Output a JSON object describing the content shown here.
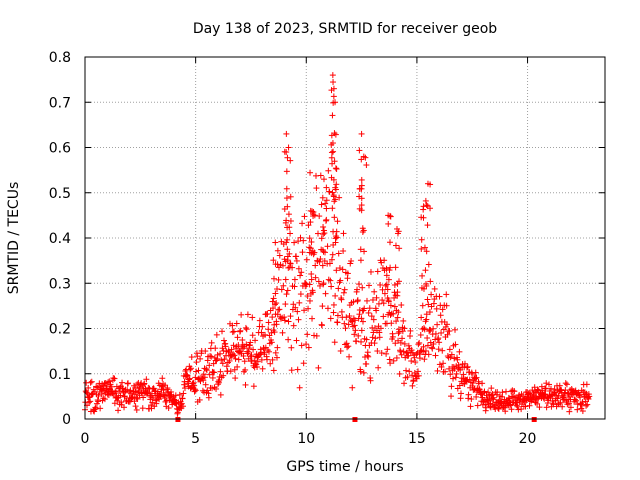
{
  "chart_data": {
    "type": "scatter",
    "title": "Day 138 of 2023, SRMTID for receiver geob",
    "xlabel": "GPS time / hours",
    "ylabel": "SRMTID / TECUs",
    "xlim": [
      0,
      23.5
    ],
    "ylim": [
      0,
      0.8
    ],
    "x_ticks": [
      0,
      5,
      10,
      15,
      20
    ],
    "x_tick_labels": [
      "0",
      "5",
      "10",
      "15",
      "20"
    ],
    "y_ticks": [
      0,
      0.1,
      0.2,
      0.3,
      0.4,
      0.5,
      0.6,
      0.7,
      0.8
    ],
    "y_tick_labels": [
      "0",
      "0.1",
      "0.2",
      "0.3",
      "0.4",
      "0.5",
      "0.6",
      "0.7",
      "0.8"
    ],
    "grid": true,
    "marker": "plus",
    "color": "#ff0000",
    "series": [
      {
        "name": "SRMTID",
        "profile": {
          "x": [
            0,
            0.5,
            1,
            1.5,
            2,
            2.5,
            3,
            3.5,
            4,
            4.2,
            4.5,
            5,
            5.5,
            6,
            6.5,
            7,
            7.5,
            8,
            8.5,
            9,
            9.5,
            10,
            10.5,
            11,
            11.5,
            12,
            12.5,
            13,
            13.5,
            14,
            14.5,
            15,
            15.5,
            16,
            16.5,
            17,
            17.5,
            18,
            18.5,
            19,
            19.5,
            20,
            20.5,
            21,
            21.5,
            22,
            22.8
          ],
          "y": [
            0.05,
            0.05,
            0.06,
            0.06,
            0.05,
            0.06,
            0.05,
            0.06,
            0.05,
            0.02,
            0.07,
            0.09,
            0.11,
            0.12,
            0.14,
            0.16,
            0.15,
            0.14,
            0.2,
            0.3,
            0.27,
            0.32,
            0.36,
            0.38,
            0.3,
            0.24,
            0.2,
            0.2,
            0.25,
            0.2,
            0.15,
            0.14,
            0.2,
            0.22,
            0.15,
            0.09,
            0.08,
            0.05,
            0.04,
            0.04,
            0.04,
            0.04,
            0.05,
            0.05,
            0.05,
            0.05,
            0.05
          ]
        },
        "peaks": [
          {
            "x": 9.1,
            "y": 0.63
          },
          {
            "x": 9.2,
            "y": 0.6
          },
          {
            "x": 11.2,
            "y": 0.76
          },
          {
            "x": 11.25,
            "y": 0.73
          },
          {
            "x": 11.3,
            "y": 0.7
          },
          {
            "x": 10.8,
            "y": 0.53
          },
          {
            "x": 12.5,
            "y": 0.63
          },
          {
            "x": 12.6,
            "y": 0.58
          },
          {
            "x": 13.7,
            "y": 0.45
          },
          {
            "x": 14.1,
            "y": 0.42
          },
          {
            "x": 15.5,
            "y": 0.52
          },
          {
            "x": 15.3,
            "y": 0.47
          },
          {
            "x": 8.6,
            "y": 0.39
          },
          {
            "x": 10.2,
            "y": 0.46
          }
        ],
        "data_gaps_hours": [
          4.2,
          12.2,
          20.3
        ]
      }
    ]
  }
}
